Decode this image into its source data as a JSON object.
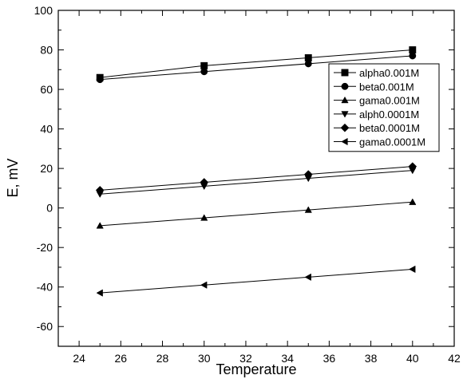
{
  "chart_data": {
    "type": "line",
    "title": "",
    "xlabel": "Temperature",
    "ylabel": "E, mV",
    "xlim": [
      23,
      42
    ],
    "ylim": [
      -70,
      100
    ],
    "xticks": [
      24,
      26,
      28,
      30,
      32,
      34,
      36,
      38,
      40,
      42
    ],
    "yticks": [
      -60,
      -40,
      -20,
      0,
      20,
      40,
      60,
      80,
      100
    ],
    "grid": false,
    "legend_position": "top-right",
    "x": [
      25,
      30,
      35,
      40
    ],
    "series": [
      {
        "name": "alpha0.001M",
        "marker": "square",
        "values": [
          66,
          72,
          76,
          80
        ]
      },
      {
        "name": "beta0.001M",
        "marker": "circle",
        "values": [
          65,
          69,
          73,
          77
        ]
      },
      {
        "name": "gama0.001M",
        "marker": "triangle-up",
        "values": [
          -9,
          -5,
          -1,
          3
        ]
      },
      {
        "name": "alph0.0001M",
        "marker": "triangle-down",
        "values": [
          7,
          11,
          15,
          19
        ]
      },
      {
        "name": "beta0.0001M",
        "marker": "diamond",
        "values": [
          9,
          13,
          17,
          21
        ]
      },
      {
        "name": "gama0.0001M",
        "marker": "triangle-left",
        "values": [
          -43,
          -39,
          -35,
          -31
        ]
      }
    ]
  }
}
